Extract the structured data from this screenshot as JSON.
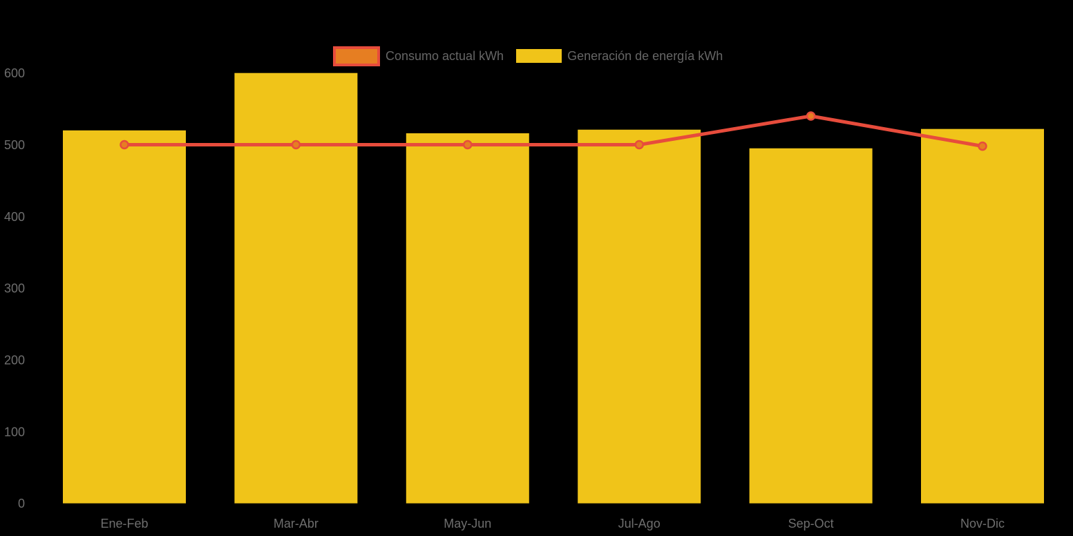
{
  "colors": {
    "background": "#000000",
    "bar_fill": "#F0C419",
    "line_stroke": "#E74C3C",
    "marker_fill": "#E67E22",
    "axis_text": "#6e6e6e",
    "legend_text": "#666666"
  },
  "legend": {
    "items": [
      {
        "label": "Consumo actual kWh",
        "swatch": "line-series"
      },
      {
        "label": "Generación de energía kWh",
        "swatch": "bar-series"
      }
    ]
  },
  "chart_data": {
    "type": "bar+line",
    "title": "",
    "xlabel": "",
    "ylabel": "",
    "categories": [
      "Ene-Feb",
      "Mar-Abr",
      "May-Jun",
      "Jul-Ago",
      "Sep-Oct",
      "Nov-Dic"
    ],
    "series": [
      {
        "name": "Consumo actual kWh",
        "type": "line",
        "color": "#E74C3C",
        "marker_color": "#E67E22",
        "values": [
          500,
          500,
          500,
          500,
          540,
          498
        ]
      },
      {
        "name": "Generación de energía kWh",
        "type": "bar",
        "color": "#F0C419",
        "values": [
          520,
          600,
          516,
          521,
          495,
          522
        ]
      }
    ],
    "ylim": [
      0,
      600
    ],
    "yticks": [
      0,
      100,
      200,
      300,
      400,
      500,
      600
    ],
    "grid": false,
    "axis_lines": false,
    "legend_position": "top"
  }
}
